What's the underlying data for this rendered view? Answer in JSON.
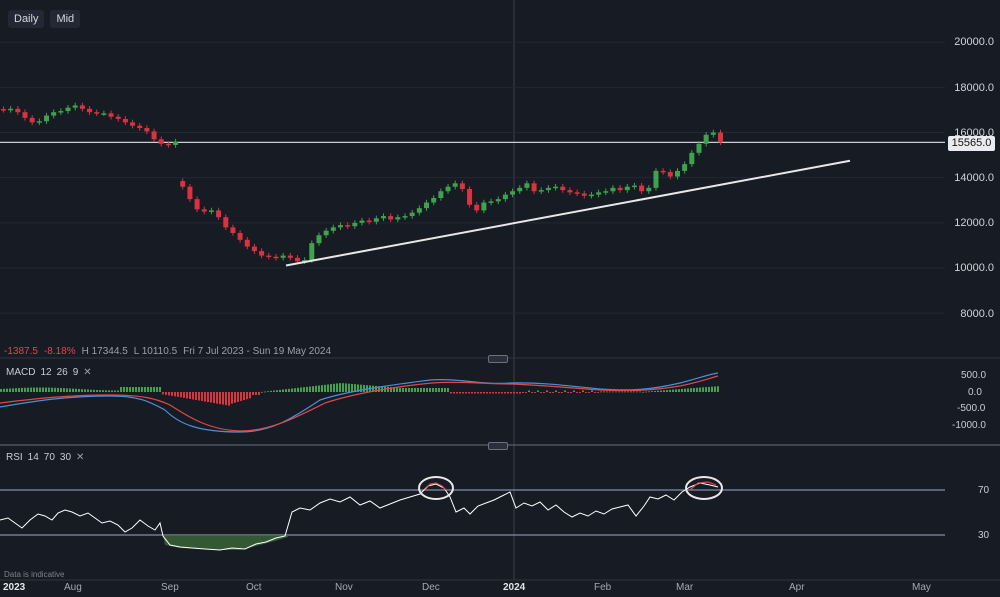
{
  "toolbar": {
    "interval": "Daily",
    "price_mode": "Mid"
  },
  "price_axis": [
    "20000.0",
    "18000.0",
    "16000.0",
    "14000.0",
    "12000.0",
    "10000.0",
    "8000.0"
  ],
  "last_price": "15565.0",
  "stats": {
    "change": "-1387.5",
    "change_pct": "-8.18%",
    "high": "H 17344.5",
    "low": "L 10110.5",
    "range": "Fri 7 Jul 2023 - Sun 19 May 2024"
  },
  "macd": {
    "name": "MACD",
    "p1": "12",
    "p2": "26",
    "p3": "9",
    "axis": [
      "500.0",
      "0.0",
      "-500.0",
      "-1000.0"
    ]
  },
  "rsi": {
    "name": "RSI",
    "p1": "14",
    "p2": "70",
    "p3": "30",
    "axis": [
      "70",
      "30"
    ]
  },
  "time_axis": {
    "year_start": "2023",
    "aug": "Aug",
    "sep": "Sep",
    "oct": "Oct",
    "nov": "Nov",
    "dec": "Dec",
    "year_mid": "2024",
    "feb": "Feb",
    "mar": "Mar",
    "apr": "Apr",
    "may": "May"
  },
  "note": "Data is indicative",
  "colors": {
    "background": "#171b24",
    "up": "#3fa34d",
    "down": "#d9333f",
    "macd_line": "#4a90d9",
    "signal_line": "#e04848",
    "rsi_line": "#ffffff",
    "trendline": "#e8e8e8"
  },
  "chart_data": {
    "type": "candlestick",
    "price_range": [
      6500,
      21000
    ],
    "points": [
      [
        1,
        17000
      ],
      [
        2,
        17050
      ],
      [
        3,
        16900
      ],
      [
        4,
        16650
      ],
      [
        5,
        16450
      ],
      [
        6,
        16500
      ],
      [
        7,
        16750
      ],
      [
        8,
        16900
      ],
      [
        9,
        16950
      ],
      [
        10,
        17100
      ],
      [
        11,
        17200
      ],
      [
        12,
        17050
      ],
      [
        13,
        16900
      ],
      [
        14,
        16850
      ],
      [
        15,
        16850
      ],
      [
        16,
        16700
      ],
      [
        17,
        16600
      ],
      [
        18,
        16450
      ],
      [
        19,
        16300
      ],
      [
        20,
        16200
      ],
      [
        21,
        16050
      ],
      [
        22,
        15700
      ],
      [
        23,
        15500
      ],
      [
        24,
        15450
      ],
      [
        25,
        15600
      ],
      [
        26,
        13600
      ],
      [
        27,
        13050
      ],
      [
        28,
        12600
      ],
      [
        29,
        12500
      ],
      [
        30,
        12550
      ],
      [
        31,
        12250
      ],
      [
        32,
        11800
      ],
      [
        33,
        11550
      ],
      [
        34,
        11250
      ],
      [
        35,
        10950
      ],
      [
        36,
        10750
      ],
      [
        37,
        10550
      ],
      [
        38,
        10500
      ],
      [
        39,
        10450
      ],
      [
        40,
        10550
      ],
      [
        41,
        10450
      ],
      [
        42,
        10300
      ],
      [
        43,
        10350
      ],
      [
        44,
        11100
      ],
      [
        45,
        11450
      ],
      [
        46,
        11650
      ],
      [
        47,
        11800
      ],
      [
        48,
        11900
      ],
      [
        49,
        11850
      ],
      [
        50,
        12000
      ],
      [
        51,
        12100
      ],
      [
        52,
        12050
      ],
      [
        53,
        12200
      ],
      [
        54,
        12300
      ],
      [
        55,
        12150
      ],
      [
        56,
        12250
      ],
      [
        57,
        12300
      ],
      [
        58,
        12450
      ],
      [
        59,
        12650
      ],
      [
        60,
        12900
      ],
      [
        61,
        13100
      ],
      [
        62,
        13400
      ],
      [
        63,
        13600
      ],
      [
        64,
        13750
      ],
      [
        65,
        13500
      ],
      [
        66,
        12800
      ],
      [
        67,
        12550
      ],
      [
        68,
        12900
      ],
      [
        69,
        12950
      ],
      [
        70,
        13050
      ],
      [
        71,
        13250
      ],
      [
        72,
        13400
      ],
      [
        73,
        13550
      ],
      [
        74,
        13750
      ],
      [
        75,
        13400
      ],
      [
        76,
        13450
      ],
      [
        77,
        13550
      ],
      [
        78,
        13600
      ],
      [
        79,
        13450
      ],
      [
        80,
        13350
      ],
      [
        81,
        13300
      ],
      [
        82,
        13200
      ],
      [
        83,
        13250
      ],
      [
        84,
        13350
      ],
      [
        85,
        13400
      ],
      [
        86,
        13550
      ],
      [
        87,
        13450
      ],
      [
        88,
        13600
      ],
      [
        89,
        13650
      ],
      [
        90,
        13400
      ],
      [
        91,
        13550
      ],
      [
        92,
        14300
      ],
      [
        93,
        14250
      ],
      [
        94,
        14050
      ],
      [
        95,
        14300
      ],
      [
        96,
        14600
      ],
      [
        97,
        15100
      ],
      [
        98,
        15500
      ],
      [
        99,
        15900
      ],
      [
        100,
        16000
      ],
      [
        101,
        15565
      ]
    ],
    "trendline": {
      "start_price": 10110.5,
      "end_price": 14750
    },
    "horizontal_line": 15565
  }
}
